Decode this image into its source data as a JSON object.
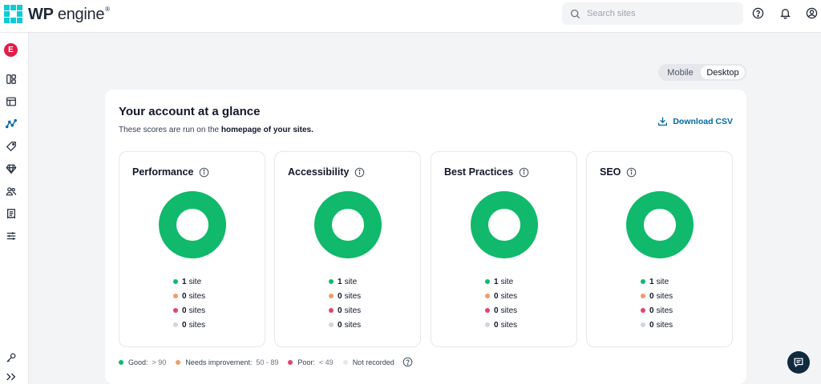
{
  "header": {
    "brand_bold": "WP",
    "brand_rest": " engine",
    "brand_tm": "®",
    "search_placeholder": "Search sites",
    "icons": [
      "help-icon",
      "bell-icon",
      "user-icon"
    ]
  },
  "sidenav": {
    "avatar_letter": "E",
    "avatar_color": "#e11d48",
    "items": [
      {
        "icon": "dashboard-icon"
      },
      {
        "icon": "sites-icon"
      },
      {
        "icon": "performance-icon",
        "active": true
      },
      {
        "icon": "tag-icon"
      },
      {
        "icon": "diamond-icon"
      },
      {
        "icon": "users-icon"
      },
      {
        "icon": "billing-icon"
      },
      {
        "icon": "settings-sliders-icon"
      }
    ],
    "bottom": [
      {
        "icon": "key-icon"
      },
      {
        "icon": "expand-icon"
      }
    ]
  },
  "view_toggle": {
    "options": [
      "Mobile",
      "Desktop"
    ],
    "selected": "Desktop"
  },
  "card": {
    "title": "Your account at a glance",
    "subtitle_prefix": "These scores are run on the ",
    "subtitle_bold": "homepage of your sites.",
    "download_label": "Download CSV"
  },
  "colors": {
    "good": "#10b96b",
    "needs_improvement": "#f59a6b",
    "poor": "#e0456a",
    "not_recorded": "#d1d5db",
    "accent": "#0369a1"
  },
  "metrics": [
    {
      "title": "Performance",
      "rows": [
        {
          "count": "1",
          "unit": "site"
        },
        {
          "count": "0",
          "unit": "sites"
        },
        {
          "count": "0",
          "unit": "sites"
        },
        {
          "count": "0",
          "unit": "sites"
        }
      ]
    },
    {
      "title": "Accessibility",
      "rows": [
        {
          "count": "1",
          "unit": "site"
        },
        {
          "count": "0",
          "unit": "sites"
        },
        {
          "count": "0",
          "unit": "sites"
        },
        {
          "count": "0",
          "unit": "sites"
        }
      ]
    },
    {
      "title": "Best Practices",
      "rows": [
        {
          "count": "1",
          "unit": "site"
        },
        {
          "count": "0",
          "unit": "sites"
        },
        {
          "count": "0",
          "unit": "sites"
        },
        {
          "count": "0",
          "unit": "sites"
        }
      ]
    },
    {
      "title": "SEO",
      "rows": [
        {
          "count": "1",
          "unit": "site"
        },
        {
          "count": "0",
          "unit": "sites"
        },
        {
          "count": "0",
          "unit": "sites"
        },
        {
          "count": "0",
          "unit": "sites"
        }
      ]
    }
  ],
  "legend": [
    {
      "label": "Good:",
      "range": "> 90"
    },
    {
      "label": "Needs improvement:",
      "range": "50 - 89"
    },
    {
      "label": "Poor:",
      "range": "< 49"
    },
    {
      "label": "Not recorded",
      "range": ""
    }
  ]
}
